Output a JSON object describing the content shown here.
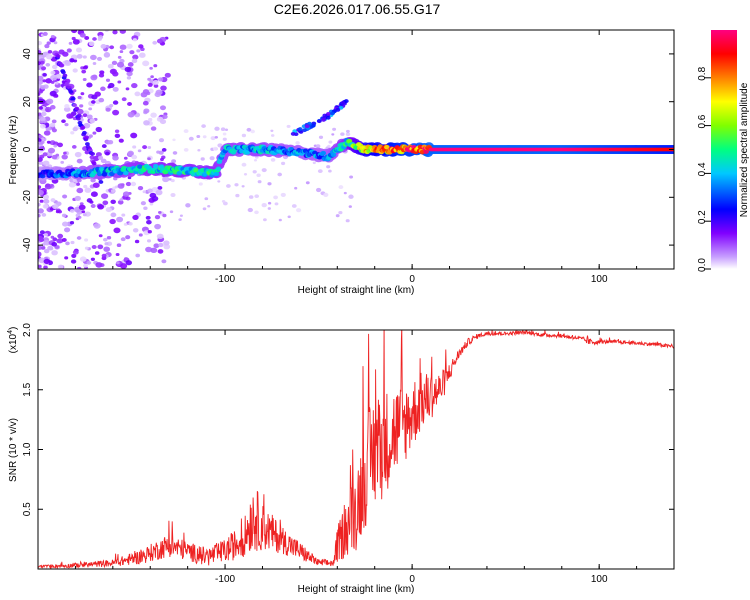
{
  "title": "C2E6.2026.017.06.55.G17",
  "chart_data": [
    {
      "type": "heatmap",
      "xlabel": "Height of straight line (km)",
      "ylabel": "Frequency (Hz)",
      "xlim": [
        -200,
        140
      ],
      "ylim": [
        -50,
        50
      ],
      "xticks": [
        -100,
        0,
        100
      ],
      "yticks": [
        -40,
        -20,
        0,
        20,
        40
      ],
      "colorbar": {
        "label": "Normalized spectral amplitude",
        "range": [
          0.0,
          1.0
        ],
        "ticks": [
          "0.0",
          "0.2",
          "0.4",
          "0.6",
          "0.8"
        ],
        "tick_values": [
          0.0,
          0.2,
          0.4,
          0.6,
          0.8
        ],
        "colors": [
          "#ffffff",
          "#c8a0ff",
          "#8000ff",
          "#0000ff",
          "#00c8ff",
          "#00ff80",
          "#80ff00",
          "#ffff00",
          "#ff8000",
          "#ff0000",
          "#ff0080"
        ]
      },
      "signal_track": {
        "x": [
          -200,
          -180,
          -160,
          -140,
          -120,
          -105,
          -100,
          -80,
          -60,
          -45,
          -35,
          -25,
          -10,
          0,
          10,
          40,
          80,
          110,
          140
        ],
        "freq": [
          -10,
          -10,
          -9,
          -8,
          -9,
          -10,
          0,
          0,
          -1,
          -3,
          3,
          0,
          0,
          0,
          0,
          0,
          0,
          0,
          0
        ],
        "amplitude": [
          0.3,
          0.4,
          0.45,
          0.5,
          0.5,
          0.5,
          0.45,
          0.45,
          0.4,
          0.4,
          0.5,
          0.8,
          0.9,
          0.95,
          1.0,
          1.0,
          1.0,
          0.95,
          0.9
        ]
      },
      "rising_branch": {
        "x": [
          -65,
          -55,
          -45,
          -35
        ],
        "freq": [
          6,
          10,
          14,
          20
        ]
      }
    },
    {
      "type": "line",
      "series_name": "SNR",
      "color": "#ee2222",
      "xlabel": "Height of straight line (km)",
      "ylabel": "SNR (10 * v/v)",
      "scale_label": "(x10",
      "scale_exp": "4",
      "scale_close": ")",
      "xlim": [
        -200,
        140
      ],
      "ylim": [
        0,
        2.0
      ],
      "xticks": [
        -100,
        0,
        100
      ],
      "yticks": [
        "0.5",
        "1.0",
        "1.5",
        "2.0"
      ],
      "ytick_values": [
        0.5,
        1.0,
        1.5,
        2.0
      ],
      "x": [
        -200,
        -180,
        -160,
        -145,
        -130,
        -120,
        -110,
        -100,
        -90,
        -85,
        -80,
        -70,
        -60,
        -50,
        -42,
        -40,
        -35,
        -30,
        -25,
        -20,
        -15,
        -10,
        -5,
        0,
        5,
        10,
        15,
        20,
        25,
        30,
        35,
        40,
        50,
        60,
        70,
        80,
        90,
        95,
        100,
        110,
        120,
        130,
        140
      ],
      "values": [
        0.02,
        0.03,
        0.05,
        0.1,
        0.2,
        0.15,
        0.1,
        0.15,
        0.25,
        0.45,
        0.35,
        0.25,
        0.15,
        0.05,
        0.05,
        0.2,
        0.35,
        0.5,
        0.8,
        1.0,
        1.05,
        1.15,
        1.2,
        1.3,
        1.4,
        1.45,
        1.5,
        1.65,
        1.8,
        1.9,
        1.95,
        1.97,
        1.97,
        1.98,
        1.96,
        1.95,
        1.93,
        1.9,
        1.9,
        1.9,
        1.89,
        1.88,
        1.86
      ],
      "noise": [
        0.01,
        0.02,
        0.03,
        0.06,
        0.1,
        0.08,
        0.08,
        0.1,
        0.15,
        0.3,
        0.2,
        0.12,
        0.08,
        0.03,
        0.03,
        0.15,
        0.25,
        0.35,
        0.45,
        0.5,
        0.45,
        0.4,
        0.35,
        0.3,
        0.25,
        0.2,
        0.15,
        0.08,
        0.04,
        0.03,
        0.02,
        0.015,
        0.015,
        0.015,
        0.015,
        0.015,
        0.015,
        0.03,
        0.015,
        0.015,
        0.015,
        0.015,
        0.015
      ]
    }
  ]
}
